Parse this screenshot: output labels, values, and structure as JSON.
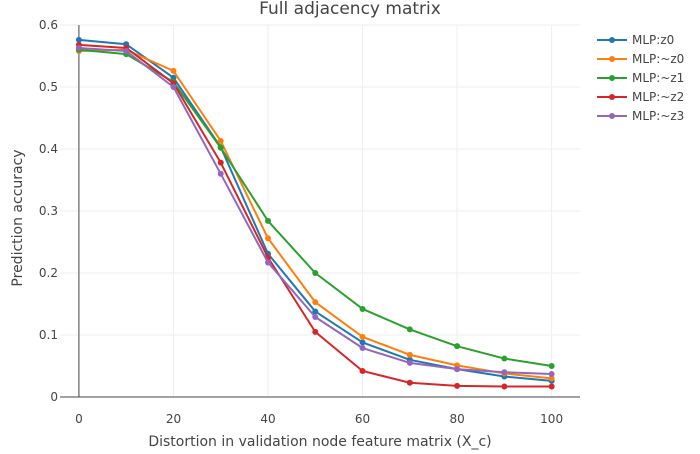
{
  "chart_data": {
    "type": "line",
    "title": "Full adjacency matrix",
    "xlabel": "Distortion in validation node feature matrix (X_c)",
    "ylabel": "Prediction accuracy",
    "x": [
      0,
      10,
      20,
      30,
      40,
      50,
      60,
      70,
      80,
      90,
      100
    ],
    "xlim": [
      -4,
      106
    ],
    "ylim": [
      0,
      0.6
    ],
    "xticks": [
      0,
      20,
      40,
      60,
      80,
      100
    ],
    "xtick_labels": [
      "0",
      "20",
      "40",
      "60",
      "80",
      "100"
    ],
    "yticks": [
      0,
      0.1,
      0.2,
      0.3,
      0.4,
      0.5,
      0.6
    ],
    "ytick_labels": [
      "0",
      "0.1",
      "0.2",
      "0.3",
      "0.4",
      "0.5",
      "0.6"
    ],
    "grid": true,
    "legend_position": "top-right",
    "series": [
      {
        "name": "MLP:z0",
        "color": "#1f77b4",
        "values": [
          0.576,
          0.569,
          0.515,
          0.403,
          0.231,
          0.138,
          0.088,
          0.06,
          0.045,
          0.033,
          0.026
        ]
      },
      {
        "name": "MLP:~z0",
        "color": "#ff7f0e",
        "values": [
          0.558,
          0.56,
          0.526,
          0.413,
          0.256,
          0.153,
          0.097,
          0.068,
          0.051,
          0.038,
          0.03
        ]
      },
      {
        "name": "MLP:~z1",
        "color": "#2ca02c",
        "values": [
          0.56,
          0.553,
          0.508,
          0.402,
          0.284,
          0.2,
          0.142,
          0.109,
          0.082,
          0.062,
          0.05
        ]
      },
      {
        "name": "MLP:~z2",
        "color": "#d62728",
        "values": [
          0.568,
          0.563,
          0.506,
          0.378,
          0.225,
          0.105,
          0.042,
          0.023,
          0.018,
          0.017,
          0.017
        ]
      },
      {
        "name": "MLP:~z3",
        "color": "#9467bd",
        "values": [
          0.563,
          0.558,
          0.5,
          0.36,
          0.217,
          0.129,
          0.079,
          0.055,
          0.045,
          0.04,
          0.037
        ]
      }
    ]
  }
}
